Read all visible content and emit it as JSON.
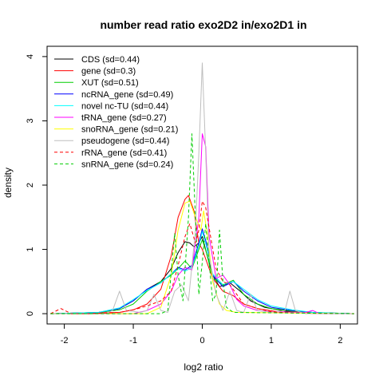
{
  "chart_data": {
    "type": "line",
    "title": "number read ratio exo2D2 in/exo2D1 in",
    "xlabel": "log2 ratio",
    "ylabel": "density",
    "xlim": [
      -2.25,
      2.25
    ],
    "ylim": [
      -0.16,
      4.16
    ],
    "xticks": [
      "-2",
      "-1",
      "0",
      "1",
      "2"
    ],
    "yticks": [
      "0",
      "1",
      "2",
      "3",
      "4"
    ],
    "grid": false,
    "legend_position": "top-left",
    "series": [
      {
        "name": "CDS (sd=0.44)",
        "color": "#000000",
        "dash": "solid",
        "points": [
          [
            -2.2,
            0
          ],
          [
            -1.5,
            0.02
          ],
          [
            -1.2,
            0.08
          ],
          [
            -1,
            0.2
          ],
          [
            -0.8,
            0.38
          ],
          [
            -0.6,
            0.5
          ],
          [
            -0.45,
            0.7
          ],
          [
            -0.35,
            0.95
          ],
          [
            -0.25,
            1.12
          ],
          [
            -0.18,
            1.1
          ],
          [
            -0.12,
            1.04
          ],
          [
            -0.05,
            1.1
          ],
          [
            0,
            1.2
          ],
          [
            0.06,
            0.95
          ],
          [
            0.15,
            0.6
          ],
          [
            0.25,
            0.42
          ],
          [
            0.4,
            0.48
          ],
          [
            0.55,
            0.35
          ],
          [
            0.7,
            0.2
          ],
          [
            0.9,
            0.1
          ],
          [
            1.2,
            0.04
          ],
          [
            1.5,
            0.02
          ],
          [
            2.2,
            0
          ]
        ]
      },
      {
        "name": "gene (sd=0.3)",
        "color": "#ff0000",
        "dash": "solid",
        "points": [
          [
            -2.2,
            0
          ],
          [
            -1.2,
            0.02
          ],
          [
            -1,
            0.06
          ],
          [
            -0.8,
            0.15
          ],
          [
            -0.6,
            0.38
          ],
          [
            -0.45,
            0.9
          ],
          [
            -0.35,
            1.5
          ],
          [
            -0.25,
            1.78
          ],
          [
            -0.2,
            1.84
          ],
          [
            -0.12,
            1.6
          ],
          [
            -0.05,
            1.1
          ],
          [
            0,
            1.0
          ],
          [
            0.05,
            0.85
          ],
          [
            0.15,
            0.55
          ],
          [
            0.3,
            0.35
          ],
          [
            0.45,
            0.28
          ],
          [
            0.6,
            0.15
          ],
          [
            0.8,
            0.08
          ],
          [
            1.1,
            0.03
          ],
          [
            2.2,
            0
          ]
        ]
      },
      {
        "name": "XUT (sd=0.51)",
        "color": "#00cd00",
        "dash": "solid",
        "points": [
          [
            -2.2,
            0
          ],
          [
            -1.5,
            0.02
          ],
          [
            -1.2,
            0.06
          ],
          [
            -1,
            0.15
          ],
          [
            -0.8,
            0.35
          ],
          [
            -0.6,
            0.5
          ],
          [
            -0.45,
            0.6
          ],
          [
            -0.35,
            0.7
          ],
          [
            -0.25,
            0.82
          ],
          [
            -0.15,
            0.7
          ],
          [
            -0.05,
            1.0
          ],
          [
            0,
            1.15
          ],
          [
            0.06,
            0.95
          ],
          [
            0.15,
            0.55
          ],
          [
            0.3,
            0.45
          ],
          [
            0.45,
            0.52
          ],
          [
            0.6,
            0.3
          ],
          [
            0.8,
            0.15
          ],
          [
            1.0,
            0.08
          ],
          [
            1.3,
            0.04
          ],
          [
            1.6,
            0.02
          ],
          [
            2.2,
            0
          ]
        ]
      },
      {
        "name": "ncRNA_gene (sd=0.49)",
        "color": "#0000ff",
        "dash": "solid",
        "points": [
          [
            -2.2,
            0
          ],
          [
            -1.5,
            0.02
          ],
          [
            -1.2,
            0.08
          ],
          [
            -1,
            0.2
          ],
          [
            -0.8,
            0.38
          ],
          [
            -0.6,
            0.48
          ],
          [
            -0.45,
            0.62
          ],
          [
            -0.35,
            0.72
          ],
          [
            -0.25,
            0.68
          ],
          [
            -0.15,
            0.75
          ],
          [
            -0.05,
            1.1
          ],
          [
            0,
            1.32
          ],
          [
            0.06,
            1.1
          ],
          [
            0.15,
            0.6
          ],
          [
            0.3,
            0.42
          ],
          [
            0.45,
            0.5
          ],
          [
            0.6,
            0.35
          ],
          [
            0.8,
            0.2
          ],
          [
            1.0,
            0.1
          ],
          [
            1.3,
            0.05
          ],
          [
            1.6,
            0.02
          ],
          [
            2.2,
            0
          ]
        ]
      },
      {
        "name": "novel nc-TU (sd=0.44)",
        "color": "#00ffff",
        "dash": "solid",
        "points": [
          [
            -2.2,
            0
          ],
          [
            -1.5,
            0.02
          ],
          [
            -1.2,
            0.09
          ],
          [
            -1,
            0.22
          ],
          [
            -0.8,
            0.36
          ],
          [
            -0.6,
            0.48
          ],
          [
            -0.45,
            0.62
          ],
          [
            -0.35,
            0.7
          ],
          [
            -0.25,
            0.66
          ],
          [
            -0.15,
            0.72
          ],
          [
            -0.05,
            1.05
          ],
          [
            0,
            1.28
          ],
          [
            0.06,
            1.05
          ],
          [
            0.15,
            0.62
          ],
          [
            0.3,
            0.45
          ],
          [
            0.45,
            0.5
          ],
          [
            0.6,
            0.38
          ],
          [
            0.8,
            0.22
          ],
          [
            1.0,
            0.12
          ],
          [
            1.3,
            0.06
          ],
          [
            1.6,
            0.02
          ],
          [
            2.2,
            0
          ]
        ]
      },
      {
        "name": "tRNA_gene (sd=0.27)",
        "color": "#ff00ff",
        "dash": "solid",
        "points": [
          [
            -2.2,
            0
          ],
          [
            -1,
            0
          ],
          [
            -0.8,
            0.05
          ],
          [
            -0.6,
            0.15
          ],
          [
            -0.45,
            0.35
          ],
          [
            -0.35,
            0.6
          ],
          [
            -0.25,
            0.72
          ],
          [
            -0.15,
            0.68
          ],
          [
            -0.05,
            1.5
          ],
          [
            0,
            2.8
          ],
          [
            0.05,
            2.6
          ],
          [
            0.1,
            1.2
          ],
          [
            0.2,
            0.55
          ],
          [
            0.3,
            0.6
          ],
          [
            0.4,
            0.45
          ],
          [
            0.5,
            0.22
          ],
          [
            0.6,
            0.12
          ],
          [
            0.8,
            0.05
          ],
          [
            1.0,
            0.03
          ],
          [
            1.5,
            0.02
          ],
          [
            1.6,
            0.05
          ],
          [
            1.7,
            0
          ],
          [
            2.2,
            0
          ]
        ]
      },
      {
        "name": "snoRNA_gene (sd=0.21)",
        "color": "#ffff00",
        "dash": "solid",
        "points": [
          [
            -2.2,
            0
          ],
          [
            -0.8,
            0
          ],
          [
            -0.6,
            0.1
          ],
          [
            -0.45,
            0.6
          ],
          [
            -0.35,
            1.3
          ],
          [
            -0.25,
            1.72
          ],
          [
            -0.18,
            1.75
          ],
          [
            -0.1,
            1.5
          ],
          [
            -0.02,
            1.3
          ],
          [
            0.02,
            1.6
          ],
          [
            0.08,
            1.2
          ],
          [
            0.15,
            0.5
          ],
          [
            0.25,
            0.15
          ],
          [
            0.35,
            0.05
          ],
          [
            0.5,
            0.02
          ],
          [
            2.2,
            0
          ]
        ]
      },
      {
        "name": "pseudogene (sd=0.44)",
        "color": "#bebebe",
        "dash": "solid",
        "points": [
          [
            -2.2,
            0
          ],
          [
            -1.4,
            0
          ],
          [
            -1.3,
            0.05
          ],
          [
            -1.2,
            0.35
          ],
          [
            -1.1,
            0.05
          ],
          [
            -0.9,
            0.02
          ],
          [
            -0.8,
            0.05
          ],
          [
            -0.7,
            0.3
          ],
          [
            -0.6,
            0.05
          ],
          [
            -0.5,
            0.02
          ],
          [
            -0.4,
            0.35
          ],
          [
            -0.3,
            0.45
          ],
          [
            -0.2,
            0.2
          ],
          [
            -0.1,
            1.3
          ],
          [
            -0.05,
            2.5
          ],
          [
            0,
            3.9
          ],
          [
            0.05,
            2.5
          ],
          [
            0.1,
            0.9
          ],
          [
            0.2,
            0.3
          ],
          [
            0.3,
            0.05
          ],
          [
            0.4,
            0.35
          ],
          [
            0.5,
            0.05
          ],
          [
            0.6,
            0.02
          ],
          [
            0.7,
            0.3
          ],
          [
            0.8,
            0.05
          ],
          [
            1.0,
            0.02
          ],
          [
            1.2,
            0.05
          ],
          [
            1.27,
            0.35
          ],
          [
            1.35,
            0.05
          ],
          [
            1.5,
            0
          ],
          [
            2.2,
            0
          ]
        ]
      },
      {
        "name": "rRNA_gene (sd=0.41)",
        "color": "#ff0000",
        "dash": "dashed",
        "points": [
          [
            -2.2,
            0
          ],
          [
            -2.05,
            0.08
          ],
          [
            -1.9,
            0
          ],
          [
            -1.6,
            0
          ],
          [
            -1.2,
            0.02
          ],
          [
            -1,
            0.06
          ],
          [
            -0.8,
            0.12
          ],
          [
            -0.6,
            0.2
          ],
          [
            -0.45,
            0.35
          ],
          [
            -0.35,
            0.75
          ],
          [
            -0.25,
            1.2
          ],
          [
            -0.18,
            1.4
          ],
          [
            -0.1,
            1.1
          ],
          [
            -0.05,
            1.3
          ],
          [
            0,
            1.75
          ],
          [
            0.05,
            1.65
          ],
          [
            0.12,
            1.2
          ],
          [
            0.2,
            0.7
          ],
          [
            0.3,
            0.5
          ],
          [
            0.4,
            0.45
          ],
          [
            0.5,
            0.3
          ],
          [
            0.6,
            0.15
          ],
          [
            0.8,
            0.08
          ],
          [
            1.0,
            0.03
          ],
          [
            1.3,
            0.01
          ],
          [
            2.2,
            0
          ]
        ]
      },
      {
        "name": "snRNA_gene (sd=0.24)",
        "color": "#00cd00",
        "dash": "dashed",
        "points": [
          [
            -2.2,
            0
          ],
          [
            -0.6,
            0
          ],
          [
            -0.5,
            0.05
          ],
          [
            -0.4,
            1.25
          ],
          [
            -0.35,
            0.6
          ],
          [
            -0.28,
            0.2
          ],
          [
            -0.2,
            1.5
          ],
          [
            -0.15,
            2.8
          ],
          [
            -0.1,
            1.5
          ],
          [
            -0.05,
            0.3
          ],
          [
            0,
            0.8
          ],
          [
            0.05,
            1.4
          ],
          [
            0.1,
            0.8
          ],
          [
            0.15,
            0.2
          ],
          [
            0.2,
            0.3
          ],
          [
            0.25,
            1.3
          ],
          [
            0.3,
            0.5
          ],
          [
            0.35,
            0.1
          ],
          [
            0.45,
            0.02
          ],
          [
            2.2,
            0
          ]
        ]
      }
    ]
  }
}
